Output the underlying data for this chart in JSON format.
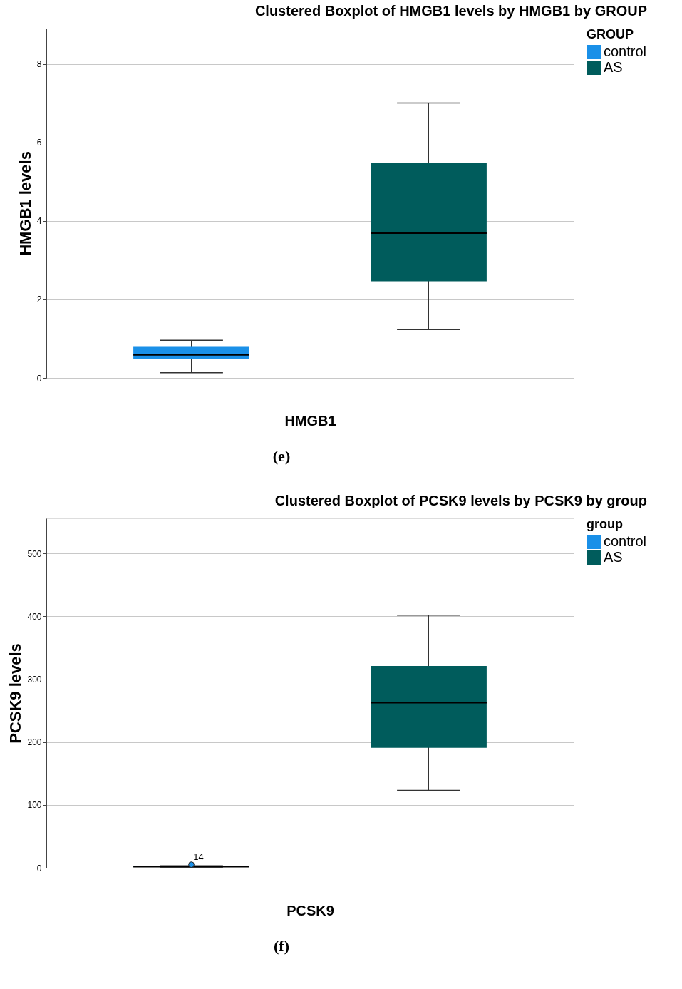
{
  "chart_data": [
    {
      "type": "box",
      "title": "Clustered Boxplot of HMGB1 levels by HMGB1 by GROUP",
      "ylabel": "HMGB1 levels",
      "categories": [
        "HMGB1"
      ],
      "legend_title": "GROUP",
      "legend": "top right",
      "grid": "y",
      "ylim": [
        0,
        8.9
      ],
      "yticks": [
        0,
        2,
        4,
        6,
        8
      ],
      "series": [
        {
          "name": "control",
          "color": "#1a90e8",
          "boxes": [
            {
              "low": 0.13,
              "q1": 0.47,
              "median": 0.59,
              "q3": 0.81,
              "high": 0.96
            }
          ]
        },
        {
          "name": "AS",
          "color": "#005c5c",
          "boxes": [
            {
              "low": 1.23,
              "q1": 2.46,
              "median": 3.69,
              "q3": 5.47,
              "high": 7.0
            }
          ]
        }
      ],
      "annotations": [
        "(e)"
      ]
    },
    {
      "type": "box",
      "title": "Clustered Boxplot of PCSK9 levels by PCSK9 by group",
      "ylabel": "PCSK9 levels",
      "categories": [
        "PCSK9"
      ],
      "legend_title": "group",
      "legend": "top right",
      "grid": "y",
      "ylim": [
        0,
        556
      ],
      "yticks": [
        0,
        100,
        200,
        300,
        400,
        500
      ],
      "series": [
        {
          "name": "control",
          "color": "#1a90e8",
          "boxes": [
            {
              "low": 1,
              "q1": 1.5,
              "median": 2,
              "q3": 2.5,
              "high": 3,
              "outliers": [
                5
              ]
            }
          ]
        },
        {
          "name": "AS",
          "color": "#005c5c",
          "boxes": [
            {
              "low": 123,
              "q1": 191,
              "median": 263,
              "q3": 321,
              "high": 402
            }
          ]
        }
      ],
      "annotations": [
        "14",
        "(f)"
      ]
    }
  ]
}
